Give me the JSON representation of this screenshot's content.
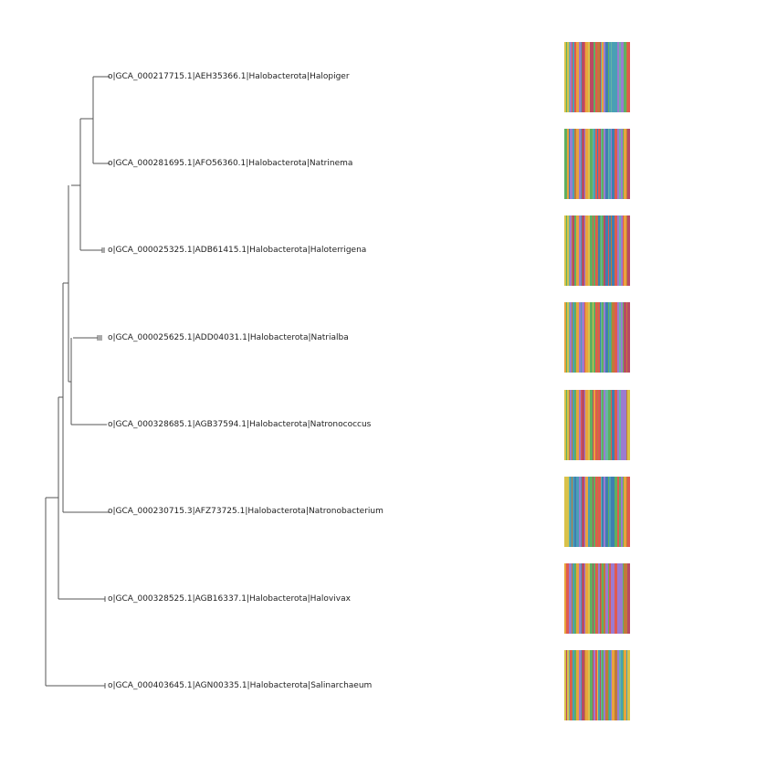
{
  "colors": {
    "branch": "#555555",
    "msa_palette": [
      "#4a9fb5",
      "#e8a33d",
      "#5fb060",
      "#e05a4f",
      "#9b7bd0",
      "#d9c24a",
      "#3f7fb0",
      "#c07a3a",
      "#66b4a4",
      "#b84a64"
    ]
  },
  "leaves": [
    {
      "name": "leaf-halopiger",
      "prefix": "o",
      "label": "|GCA_000217715.1|AEH35366.1|Halobacterota|Halopiger"
    },
    {
      "name": "leaf-natrinema",
      "prefix": "o",
      "label": "|GCA_000281695.1|AFO56360.1|Halobacterota|Natrinema"
    },
    {
      "name": "leaf-haloterrigena",
      "prefix": "o",
      "label": "|GCA_000025325.1|ADB61415.1|Halobacterota|Haloterrigena"
    },
    {
      "name": "leaf-natrialba",
      "prefix": "o",
      "label": "|GCA_000025625.1|ADD04031.1|Halobacterota|Natrialba"
    },
    {
      "name": "leaf-natronococcus",
      "prefix": "o",
      "label": "|GCA_000328685.1|AGB37594.1|Halobacterota|Natronococcus"
    },
    {
      "name": "leaf-natronobacterium",
      "prefix": "o",
      "label": "|GCA_000230715.3|AFZ73725.1|Halobacterota|Natronobacterium"
    },
    {
      "name": "leaf-halovivax",
      "prefix": "o",
      "label": "|GCA_000328525.1|AGB16337.1|Halobacterota|Halovivax"
    },
    {
      "name": "leaf-salinarchaeum",
      "prefix": "o",
      "label": "|GCA_000403645.1|AGN00335.1|Halobacterota|Salinarchaeum"
    }
  ]
}
